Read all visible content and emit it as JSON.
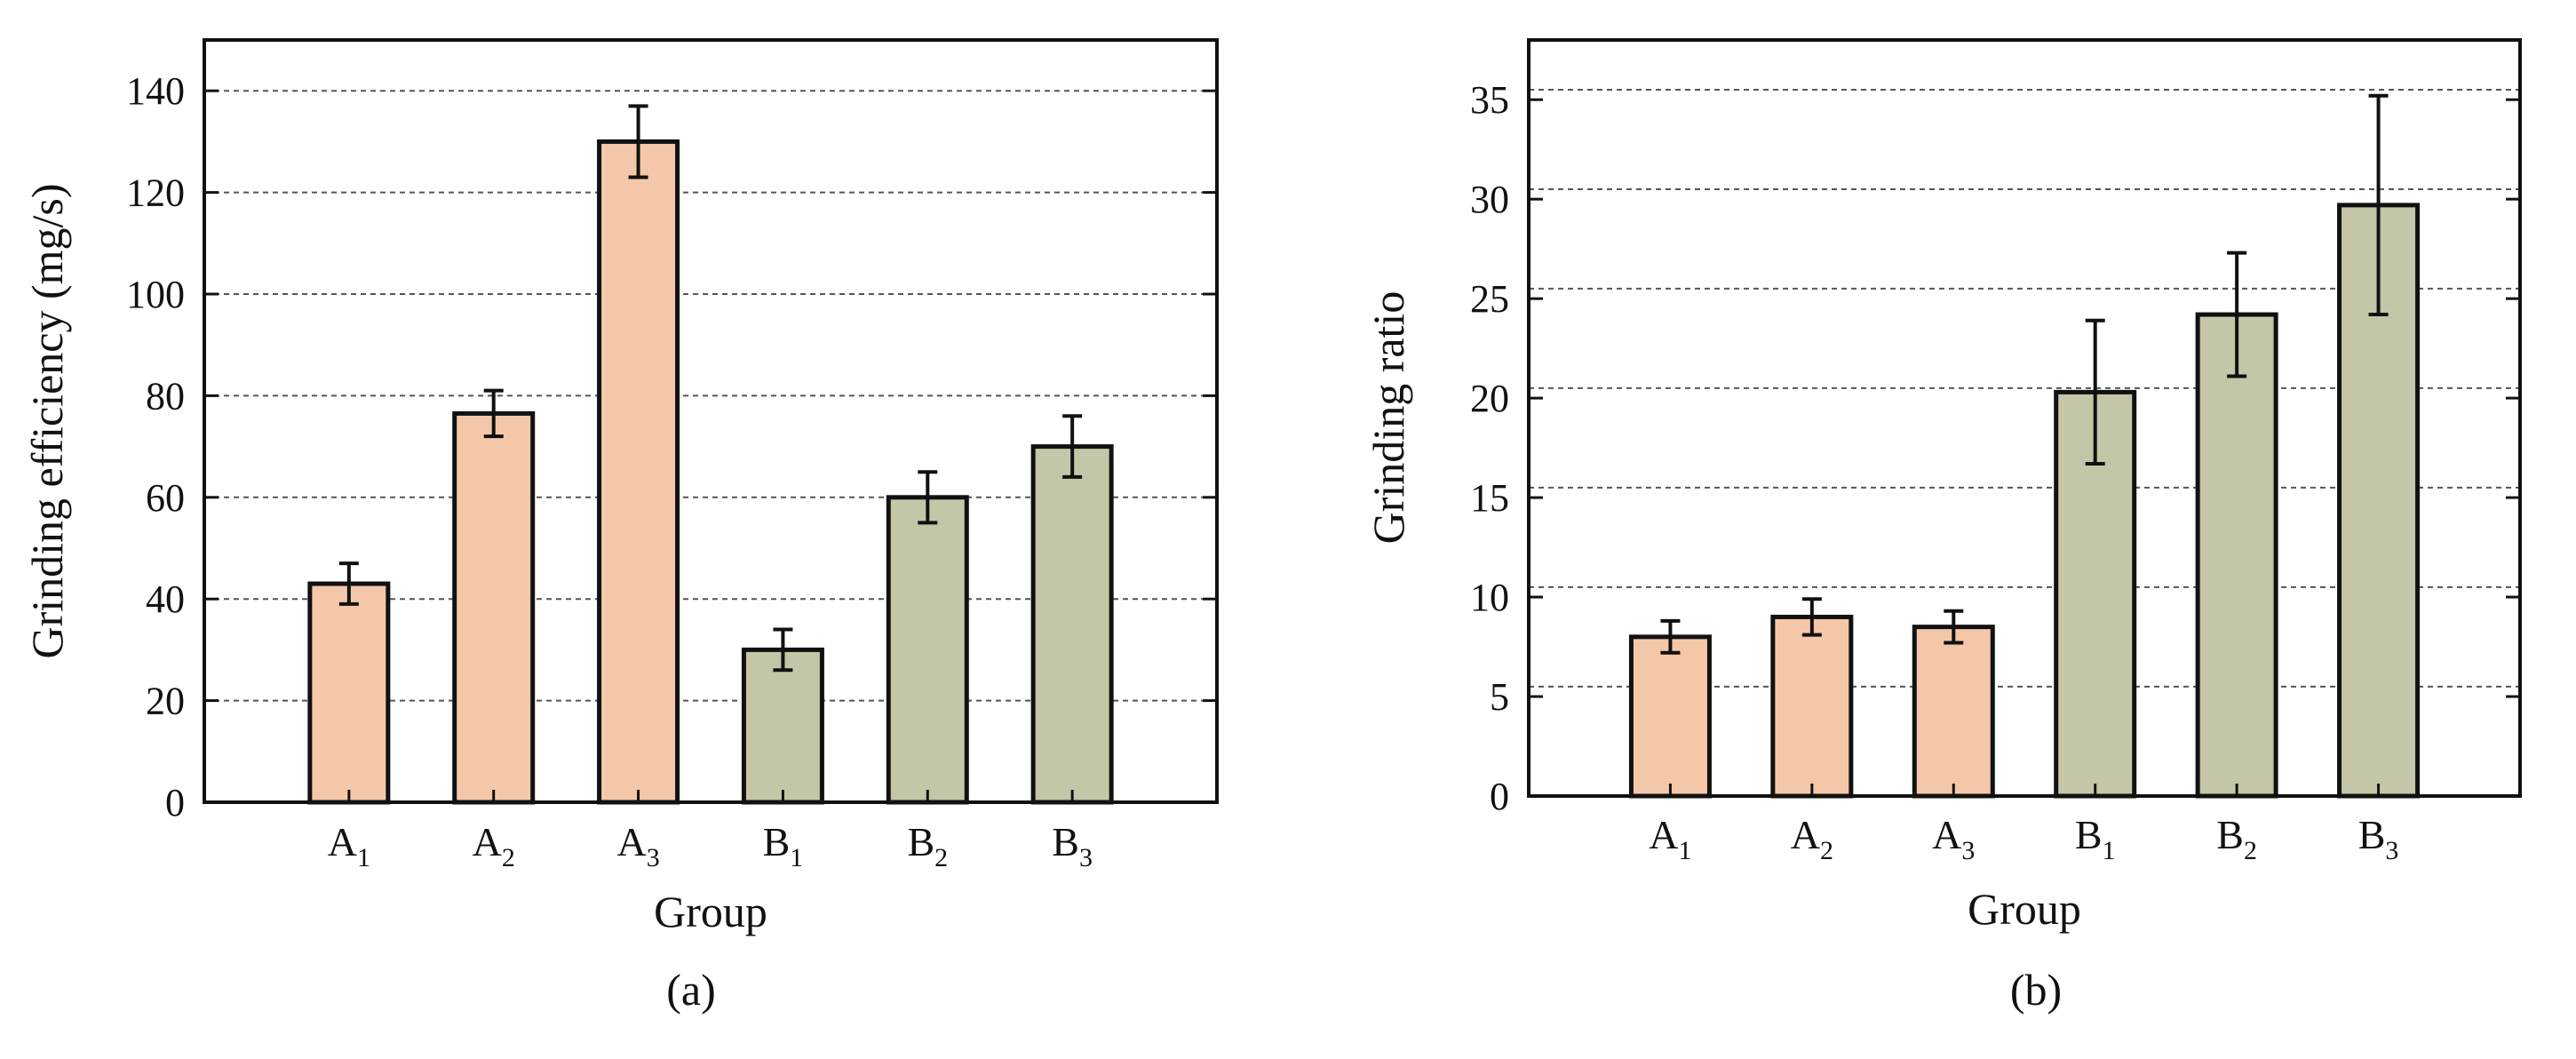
{
  "chart_data": [
    {
      "panel": "(a)",
      "type": "bar",
      "categories": [
        {
          "base": "A",
          "sub": "1"
        },
        {
          "base": "A",
          "sub": "2"
        },
        {
          "base": "A",
          "sub": "3"
        },
        {
          "base": "B",
          "sub": "1"
        },
        {
          "base": "B",
          "sub": "2"
        },
        {
          "base": "B",
          "sub": "3"
        }
      ],
      "values": [
        43,
        76.5,
        130,
        30,
        60,
        70
      ],
      "errors": [
        4,
        4.5,
        7,
        4,
        5,
        6
      ],
      "colors": [
        "#f5c7a9",
        "#f5c7a9",
        "#f5c7a9",
        "#c5c6a8",
        "#c5c6a8",
        "#c5c6a8"
      ],
      "title": "",
      "xlabel": "Group",
      "ylabel": "Grinding efficiency (mg/s)",
      "ylim": [
        0,
        150
      ],
      "yticks": [
        0,
        20,
        40,
        60,
        80,
        100,
        120,
        140
      ],
      "gridlines": [
        20,
        40,
        60,
        80,
        100,
        120,
        140
      ],
      "grid": true
    },
    {
      "panel": "(b)",
      "type": "bar",
      "categories": [
        {
          "base": "A",
          "sub": "1"
        },
        {
          "base": "A",
          "sub": "2"
        },
        {
          "base": "A",
          "sub": "3"
        },
        {
          "base": "B",
          "sub": "1"
        },
        {
          "base": "B",
          "sub": "2"
        },
        {
          "base": "B",
          "sub": "3"
        }
      ],
      "values": [
        8,
        9,
        8.5,
        20.3,
        24.2,
        29.7
      ],
      "errors": [
        0.8,
        0.9,
        0.8,
        3.6,
        3.1,
        5.5
      ],
      "colors": [
        "#f5c7a9",
        "#f5c7a9",
        "#f5c7a9",
        "#c5c6a8",
        "#c5c6a8",
        "#c5c6a8"
      ],
      "title": "",
      "xlabel": "Group",
      "ylabel": "Grinding ratio",
      "ylim": [
        0,
        38
      ],
      "yticks": [
        0,
        5,
        10,
        15,
        20,
        25,
        30,
        35
      ],
      "gridlines": [
        5.5,
        10.5,
        15.5,
        20.5,
        25.5,
        30.5,
        35.5
      ],
      "grid": true
    }
  ],
  "captions": [
    "(a)",
    "(b)"
  ]
}
